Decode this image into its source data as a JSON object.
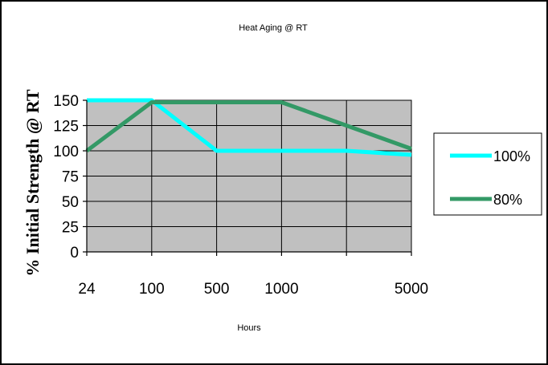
{
  "chart_data": {
    "type": "line",
    "title": "Heat Aging @ RT",
    "xlabel": "Hours",
    "ylabel": "% Initial Strength @ RT",
    "categories": [
      "24",
      "100",
      "500",
      "1000",
      "",
      "5000"
    ],
    "ylim": [
      0,
      150
    ],
    "yticks": [
      0,
      25,
      50,
      75,
      100,
      125,
      150
    ],
    "grid": true,
    "legend_position": "right",
    "plot_background": "#c0c0c0",
    "series": [
      {
        "name": "100%",
        "color": "#00ffff",
        "values": [
          150,
          150,
          100,
          100,
          100,
          96
        ]
      },
      {
        "name": "80%",
        "color": "#339966",
        "values": [
          100,
          148,
          148,
          148,
          125,
          102
        ]
      }
    ]
  }
}
